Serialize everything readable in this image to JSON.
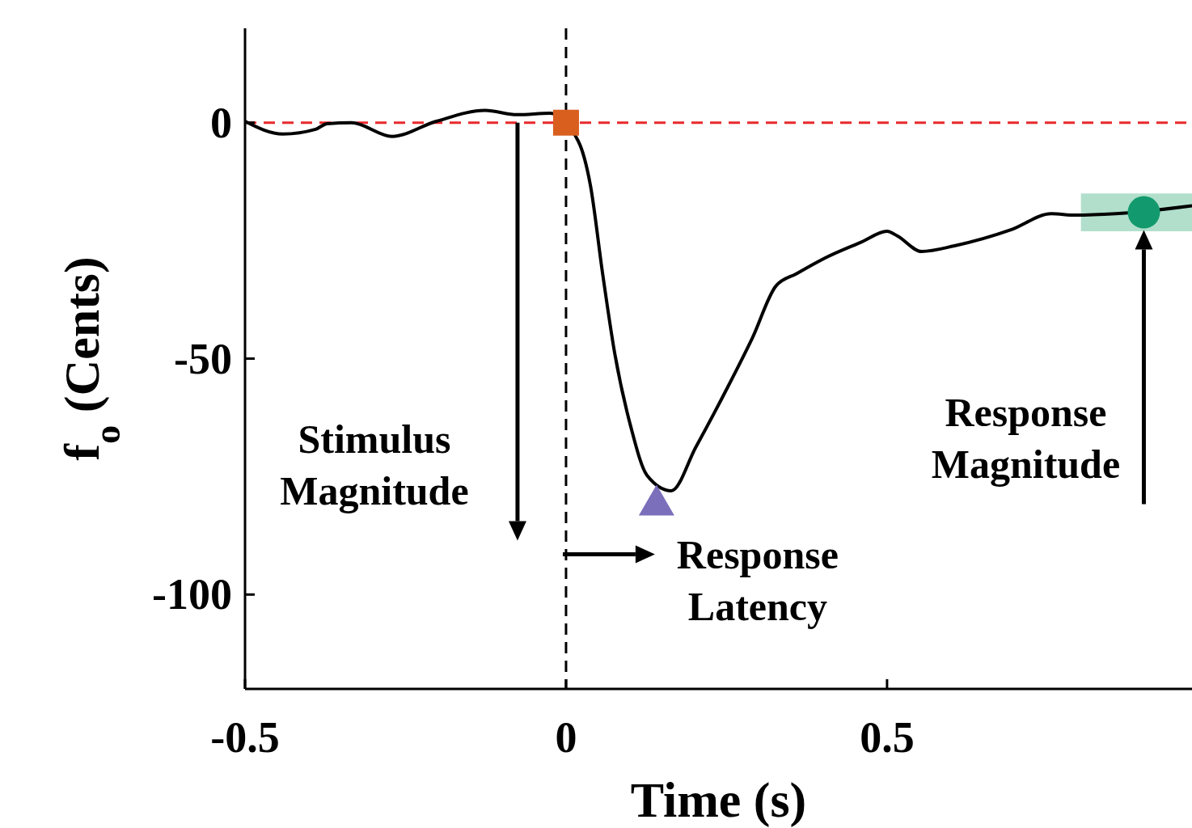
{
  "chart_data": {
    "type": "line",
    "xlabel": "Time (s)",
    "ylabel": "f$_{o}$ (Cents)",
    "xlim": [
      -0.5,
      0.975
    ],
    "ylim": [
      -120,
      20
    ],
    "xticks": [
      -0.5,
      0,
      0.5
    ],
    "yticks": [
      -100,
      -50,
      0
    ],
    "annotations": [
      "Stimulus Magnitude",
      "Response Latency",
      "Response Magnitude"
    ],
    "ref_lines": [
      {
        "axis": "y",
        "value": 0,
        "color": "#e8282b",
        "line_style": "dashed"
      },
      {
        "axis": "x",
        "value": 0,
        "color": "#000000",
        "line_style": "dashed"
      }
    ],
    "series": [
      {
        "type": "line",
        "x": [
          0.802,
          0.975
        ],
        "values": [
          null,
          null
        ],
        "lower": [
          -23,
          -23
        ],
        "upper": [
          -15,
          -15
        ],
        "color": "#a8dcc6"
      },
      {
        "color": "#000000",
        "marker": "none",
        "line_style": "solid",
        "x": [
          -0.5,
          -0.441,
          -0.39,
          -0.372,
          -0.334,
          -0.271,
          -0.202,
          -0.126,
          -0.076,
          -0.025,
          0.019,
          0.038,
          0.057,
          0.076,
          0.101,
          0.126,
          0.164,
          0.202,
          0.252,
          0.29,
          0.327,
          0.359,
          0.403,
          0.46,
          0.5,
          0.516,
          0.554,
          0.605,
          0.693,
          0.756,
          0.793,
          0.856,
          0.975
        ],
        "values": [
          0.3,
          -2.4,
          -1.4,
          -0.2,
          0,
          -2.9,
          0.3,
          2.6,
          1.7,
          2,
          -3.9,
          -13.3,
          -32,
          -49,
          -64.5,
          -74.7,
          -78,
          -68.8,
          -56,
          -45.7,
          -34.6,
          -32,
          -28.7,
          -25.3,
          -23,
          -24,
          -27.3,
          -26.1,
          -22.7,
          -19.3,
          -19.6,
          -19.3,
          -17.6
        ]
      },
      {
        "type": "scatter",
        "marker": "square",
        "color": "#d95f1e",
        "x": [
          0
        ],
        "values": [
          0
        ]
      },
      {
        "type": "scatter",
        "marker": "triangle",
        "color": "#7b6fbb",
        "x": [
          0.141
        ],
        "values": [
          -80
        ]
      },
      {
        "type": "scatter",
        "marker": "circle",
        "color": "#129a6e",
        "x": [
          0.9
        ],
        "values": [
          -19
        ]
      }
    ]
  }
}
